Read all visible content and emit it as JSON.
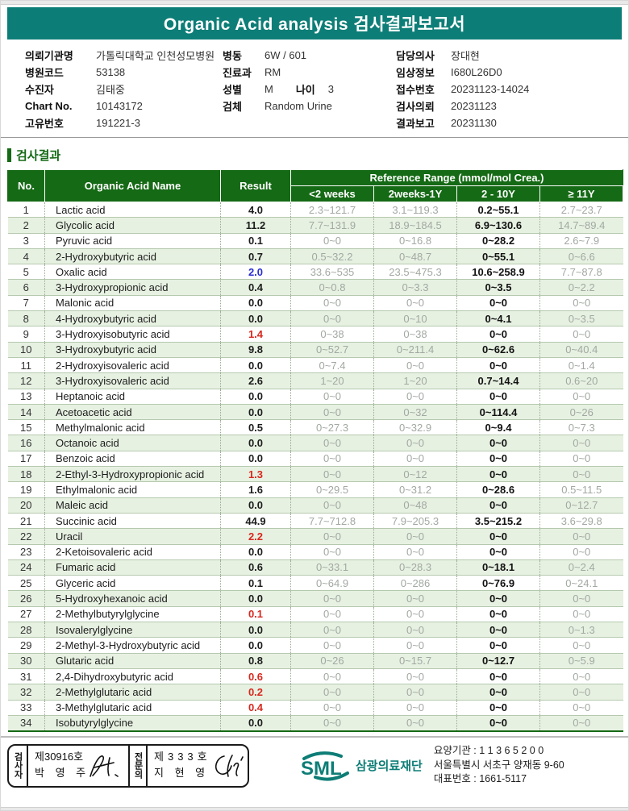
{
  "title": "Organic Acid analysis 검사결과보고서",
  "colors": {
    "header_teal": "#0d7e77",
    "table_green": "#156a15",
    "row_stripe": "#e7f1e2",
    "abnormal_red": "#d8281e",
    "abnormal_blue": "#2a2ecf",
    "logo_teal": "#0d7d76"
  },
  "patient_info": {
    "col1": [
      {
        "label": "의뢰기관명",
        "value": "가톨릭대학교 인천성모병원"
      },
      {
        "label": "병원코드",
        "value": "53138"
      },
      {
        "label": "수진자",
        "value": "김태중"
      },
      {
        "label": "Chart No.",
        "value": "10143172"
      },
      {
        "label": "고유번호",
        "value": "191221-3"
      }
    ],
    "col2": [
      {
        "label": "병동",
        "value": "6W / 601"
      },
      {
        "label": "진료과",
        "value": "RM"
      },
      {
        "label": "성별",
        "value": "M",
        "label2": "나이",
        "value2": "3"
      },
      {
        "label": "검체",
        "value": "Random Urine"
      }
    ],
    "col3": [
      {
        "label": "담당의사",
        "value": "장대현"
      },
      {
        "label": "임상정보",
        "value": "I680L26D0"
      },
      {
        "label": "접수번호",
        "value": "20231123-14024"
      },
      {
        "label": "검사의뢰",
        "value": "20231123"
      },
      {
        "label": "결과보고",
        "value": "20231130"
      }
    ]
  },
  "section_title": "검사결과",
  "table": {
    "col_no": "No.",
    "col_name": "Organic Acid Name",
    "col_result": "Result",
    "ref_group": "Reference Range (mmol/mol Crea.)",
    "ref_cols": [
      "<2 weeks",
      "2weeks-1Y",
      "2 - 10Y",
      "≥ 11Y"
    ],
    "active_ref_col": 2,
    "rows": [
      {
        "no": 1,
        "name": "Lactic acid",
        "result": "4.0",
        "style": "normal",
        "refs": [
          "2.3~121.7",
          "3.1~119.3",
          "0.2~55.1",
          "2.7~23.7"
        ]
      },
      {
        "no": 2,
        "name": "Glycolic acid",
        "result": "11.2",
        "style": "normal",
        "refs": [
          "7.7~131.9",
          "18.9~184.5",
          "6.9~130.6",
          "14.7~89.4"
        ]
      },
      {
        "no": 3,
        "name": "Pyruvic acid",
        "result": "0.1",
        "style": "normal",
        "refs": [
          "0~0",
          "0~16.8",
          "0~28.2",
          "2.6~7.9"
        ]
      },
      {
        "no": 4,
        "name": "2-Hydroxybutyric acid",
        "result": "0.7",
        "style": "normal",
        "refs": [
          "0.5~32.2",
          "0~48.7",
          "0~55.1",
          "0~6.6"
        ]
      },
      {
        "no": 5,
        "name": "Oxalic acid",
        "result": "2.0",
        "style": "blue",
        "refs": [
          "33.6~535",
          "23.5~475.3",
          "10.6~258.9",
          "7.7~87.8"
        ]
      },
      {
        "no": 6,
        "name": "3-Hydroxypropionic acid",
        "result": "0.4",
        "style": "normal",
        "refs": [
          "0~0.8",
          "0~3.3",
          "0~3.5",
          "0~2.2"
        ]
      },
      {
        "no": 7,
        "name": "Malonic acid",
        "result": "0.0",
        "style": "normal",
        "refs": [
          "0~0",
          "0~0",
          "0~0",
          "0~0"
        ]
      },
      {
        "no": 8,
        "name": "4-Hydroxybutyric acid",
        "result": "0.0",
        "style": "normal",
        "refs": [
          "0~0",
          "0~10",
          "0~4.1",
          "0~3.5"
        ]
      },
      {
        "no": 9,
        "name": "3-Hydroxyisobutyric acid",
        "result": "1.4",
        "style": "red",
        "refs": [
          "0~38",
          "0~38",
          "0~0",
          "0~0"
        ]
      },
      {
        "no": 10,
        "name": "3-Hydroxybutyric acid",
        "result": "9.8",
        "style": "normal",
        "refs": [
          "0~52.7",
          "0~211.4",
          "0~62.6",
          "0~40.4"
        ]
      },
      {
        "no": 11,
        "name": "2-Hydroxyisovaleric acid",
        "result": "0.0",
        "style": "normal",
        "refs": [
          "0~7.4",
          "0~0",
          "0~0",
          "0~1.4"
        ]
      },
      {
        "no": 12,
        "name": "3-Hydroxyisovaleric acid",
        "result": "2.6",
        "style": "normal",
        "refs": [
          "1~20",
          "1~20",
          "0.7~14.4",
          "0.6~20"
        ]
      },
      {
        "no": 13,
        "name": "Heptanoic acid",
        "result": "0.0",
        "style": "normal",
        "refs": [
          "0~0",
          "0~0",
          "0~0",
          "0~0"
        ]
      },
      {
        "no": 14,
        "name": "Acetoacetic acid",
        "result": "0.0",
        "style": "normal",
        "refs": [
          "0~0",
          "0~32",
          "0~114.4",
          "0~26"
        ]
      },
      {
        "no": 15,
        "name": "Methylmalonic acid",
        "result": "0.5",
        "style": "normal",
        "refs": [
          "0~27.3",
          "0~32.9",
          "0~9.4",
          "0~7.3"
        ]
      },
      {
        "no": 16,
        "name": "Octanoic acid",
        "result": "0.0",
        "style": "normal",
        "refs": [
          "0~0",
          "0~0",
          "0~0",
          "0~0"
        ]
      },
      {
        "no": 17,
        "name": "Benzoic acid",
        "result": "0.0",
        "style": "normal",
        "refs": [
          "0~0",
          "0~0",
          "0~0",
          "0~0"
        ]
      },
      {
        "no": 18,
        "name": "2-Ethyl-3-Hydroxypropionic acid",
        "result": "1.3",
        "style": "red",
        "refs": [
          "0~0",
          "0~12",
          "0~0",
          "0~0"
        ]
      },
      {
        "no": 19,
        "name": "Ethylmalonic acid",
        "result": "1.6",
        "style": "normal",
        "refs": [
          "0~29.5",
          "0~31.2",
          "0~28.6",
          "0.5~11.5"
        ]
      },
      {
        "no": 20,
        "name": "Maleic acid",
        "result": "0.0",
        "style": "normal",
        "refs": [
          "0~0",
          "0~48",
          "0~0",
          "0~12.7"
        ]
      },
      {
        "no": 21,
        "name": "Succinic acid",
        "result": "44.9",
        "style": "normal",
        "refs": [
          "7.7~712.8",
          "7.9~205.3",
          "3.5~215.2",
          "3.6~29.8"
        ]
      },
      {
        "no": 22,
        "name": "Uracil",
        "result": "2.2",
        "style": "red",
        "refs": [
          "0~0",
          "0~0",
          "0~0",
          "0~0"
        ]
      },
      {
        "no": 23,
        "name": "2-Ketoisovaleric acid",
        "result": "0.0",
        "style": "normal",
        "refs": [
          "0~0",
          "0~0",
          "0~0",
          "0~0"
        ]
      },
      {
        "no": 24,
        "name": "Fumaric acid",
        "result": "0.6",
        "style": "normal",
        "refs": [
          "0~33.1",
          "0~28.3",
          "0~18.1",
          "0~2.4"
        ]
      },
      {
        "no": 25,
        "name": "Glyceric acid",
        "result": "0.1",
        "style": "normal",
        "refs": [
          "0~64.9",
          "0~286",
          "0~76.9",
          "0~24.1"
        ]
      },
      {
        "no": 26,
        "name": "5-Hydroxyhexanoic acid",
        "result": "0.0",
        "style": "normal",
        "refs": [
          "0~0",
          "0~0",
          "0~0",
          "0~0"
        ]
      },
      {
        "no": 27,
        "name": "2-Methylbutyrylglycine",
        "result": "0.1",
        "style": "red",
        "refs": [
          "0~0",
          "0~0",
          "0~0",
          "0~0"
        ]
      },
      {
        "no": 28,
        "name": "Isovalerylglycine",
        "result": "0.0",
        "style": "normal",
        "refs": [
          "0~0",
          "0~0",
          "0~0",
          "0~1.3"
        ]
      },
      {
        "no": 29,
        "name": "2-Methyl-3-Hydroxybutyric acid",
        "result": "0.0",
        "style": "normal",
        "refs": [
          "0~0",
          "0~0",
          "0~0",
          "0~0"
        ]
      },
      {
        "no": 30,
        "name": "Glutaric acid",
        "result": "0.8",
        "style": "normal",
        "refs": [
          "0~26",
          "0~15.7",
          "0~12.7",
          "0~5.9"
        ]
      },
      {
        "no": 31,
        "name": "2,4-Dihydroxybutyric acid",
        "result": "0.6",
        "style": "red",
        "refs": [
          "0~0",
          "0~0",
          "0~0",
          "0~0"
        ]
      },
      {
        "no": 32,
        "name": "2-Methylglutaric acid",
        "result": "0.2",
        "style": "red",
        "refs": [
          "0~0",
          "0~0",
          "0~0",
          "0~0"
        ]
      },
      {
        "no": 33,
        "name": "3-Methylglutaric acid",
        "result": "0.4",
        "style": "red",
        "refs": [
          "0~0",
          "0~0",
          "0~0",
          "0~0"
        ]
      },
      {
        "no": 34,
        "name": "Isobutyrylglycine",
        "result": "0.0",
        "style": "normal",
        "refs": [
          "0~0",
          "0~0",
          "0~0",
          "0~0"
        ]
      }
    ]
  },
  "footer": {
    "stamp": {
      "role1": "검사자",
      "cert1": "제30916호",
      "name1": "박 영 주",
      "role2": "전문의",
      "cert2": "제333호",
      "name2": "지 현 영"
    },
    "company": {
      "logo": "SML",
      "logo_name": "삼광의료재단",
      "line1": "요양기관 : 1 1 3 6 5 2 0 0",
      "line2": "서울특별시 서초구 양재동 9-60",
      "line3": "대표번호 : 1661-5117"
    }
  }
}
